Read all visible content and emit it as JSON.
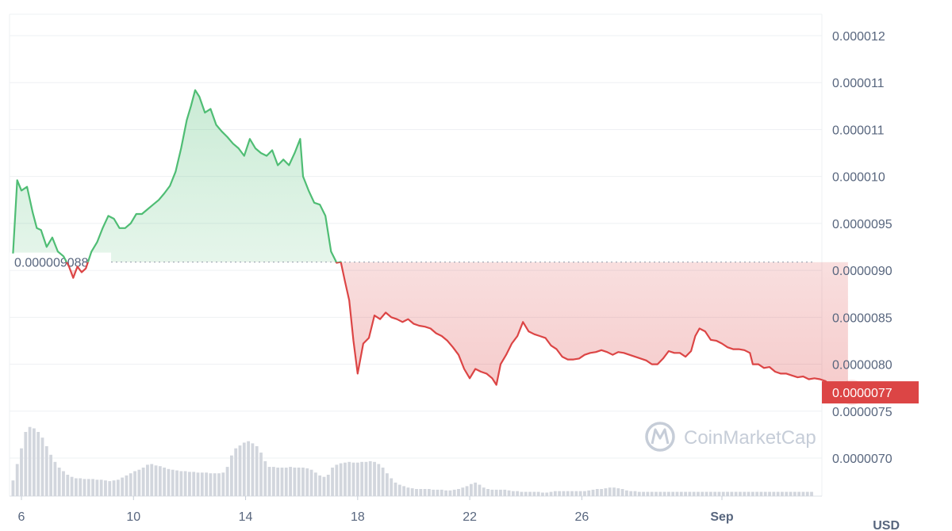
{
  "currency_label": "USD",
  "watermark": "CoinMarketCap",
  "colors": {
    "up": "#4fbd74",
    "down": "#dc4545",
    "grid": "#eef0f3",
    "axis_text": "#58667e",
    "volume": "#d2d6dd",
    "watermark": "#c6cdd8"
  },
  "chart_data": {
    "type": "area",
    "baseline": {
      "value": 9.088e-06,
      "label": "0.000009088",
      "style": "dotted"
    },
    "current_price": {
      "value": 7.7e-06,
      "label": "0.0000077"
    },
    "y_axis": {
      "ticks": [
        7e-06,
        7.5e-06,
        8e-06,
        8.5e-06,
        9e-06,
        9.5e-06,
        1e-05,
        1.05e-05,
        1.1e-05,
        1.15e-05
      ],
      "tick_labels": [
        "0.0000070",
        "0.0000075",
        "0.0000080",
        "0.0000085",
        "0.0000090",
        "0.0000095",
        "0.000010",
        "0.000011",
        "0.000011",
        "0.000012"
      ],
      "position": "right"
    },
    "x_axis": {
      "ticks": [
        6,
        10,
        14,
        18,
        22,
        26,
        31
      ],
      "tick_labels": [
        "6",
        "10",
        "14",
        "18",
        "22",
        "26",
        "Sep"
      ],
      "bold_labels": [
        "Sep"
      ]
    },
    "x_range": [
      5.7,
      35.7
    ],
    "ylim": [
      6.9e-06,
      1.2e-05
    ],
    "series": [
      {
        "points": [
          [
            5.7,
            9.18e-06
          ],
          [
            5.85,
            9.96e-06
          ],
          [
            6.0,
            9.85e-06
          ],
          [
            6.2,
            9.89e-06
          ],
          [
            6.4,
            9.62e-06
          ],
          [
            6.55,
            9.45e-06
          ],
          [
            6.7,
            9.43e-06
          ],
          [
            6.9,
            9.25e-06
          ],
          [
            7.1,
            9.35e-06
          ],
          [
            7.3,
            9.2e-06
          ],
          [
            7.5,
            9.15e-06
          ],
          [
            7.7,
            9.04e-06
          ],
          [
            7.85,
            8.92e-06
          ],
          [
            8.0,
            9.04e-06
          ],
          [
            8.15,
            8.98e-06
          ],
          [
            8.3,
            9.02e-06
          ],
          [
            8.5,
            9.2e-06
          ],
          [
            8.7,
            9.3e-06
          ],
          [
            8.9,
            9.45e-06
          ],
          [
            9.1,
            9.58e-06
          ],
          [
            9.3,
            9.55e-06
          ],
          [
            9.5,
            9.45e-06
          ],
          [
            9.7,
            9.45e-06
          ],
          [
            9.9,
            9.5e-06
          ],
          [
            10.1,
            9.6e-06
          ],
          [
            10.3,
            9.6e-06
          ],
          [
            10.5,
            9.65e-06
          ],
          [
            10.7,
            9.7e-06
          ],
          [
            10.9,
            9.75e-06
          ],
          [
            11.1,
            9.82e-06
          ],
          [
            11.3,
            9.9e-06
          ],
          [
            11.5,
            1.005e-05
          ],
          [
            11.7,
            1.03e-05
          ],
          [
            11.9,
            1.06e-05
          ],
          [
            12.05,
            1.075e-05
          ],
          [
            12.2,
            1.092e-05
          ],
          [
            12.35,
            1.085e-05
          ],
          [
            12.55,
            1.068e-05
          ],
          [
            12.75,
            1.072e-05
          ],
          [
            12.95,
            1.055e-05
          ],
          [
            13.15,
            1.048e-05
          ],
          [
            13.35,
            1.042e-05
          ],
          [
            13.55,
            1.035e-05
          ],
          [
            13.75,
            1.03e-05
          ],
          [
            13.95,
            1.022e-05
          ],
          [
            14.15,
            1.04e-05
          ],
          [
            14.35,
            1.03e-05
          ],
          [
            14.55,
            1.025e-05
          ],
          [
            14.75,
            1.022e-05
          ],
          [
            14.95,
            1.028e-05
          ],
          [
            15.15,
            1.012e-05
          ],
          [
            15.35,
            1.018e-05
          ],
          [
            15.55,
            1.012e-05
          ],
          [
            15.75,
            1.025e-05
          ],
          [
            15.95,
            1.04e-05
          ],
          [
            16.05,
            1e-05
          ],
          [
            16.25,
            9.85e-06
          ],
          [
            16.45,
            9.72e-06
          ],
          [
            16.65,
            9.7e-06
          ],
          [
            16.85,
            9.58e-06
          ],
          [
            17.05,
            9.2e-06
          ],
          [
            17.25,
            9.08e-06
          ],
          [
            17.4,
            9.09e-06
          ],
          [
            17.55,
            8.88e-06
          ],
          [
            17.7,
            8.68e-06
          ],
          [
            17.85,
            8.25e-06
          ],
          [
            18.0,
            7.9e-06
          ],
          [
            18.2,
            8.22e-06
          ],
          [
            18.4,
            8.28e-06
          ],
          [
            18.6,
            8.52e-06
          ],
          [
            18.8,
            8.48e-06
          ],
          [
            19.0,
            8.55e-06
          ],
          [
            19.2,
            8.5e-06
          ],
          [
            19.4,
            8.48e-06
          ],
          [
            19.6,
            8.45e-06
          ],
          [
            19.8,
            8.48e-06
          ],
          [
            20.0,
            8.43e-06
          ],
          [
            20.2,
            8.41e-06
          ],
          [
            20.4,
            8.4e-06
          ],
          [
            20.6,
            8.38e-06
          ],
          [
            20.8,
            8.33e-06
          ],
          [
            21.0,
            8.3e-06
          ],
          [
            21.2,
            8.25e-06
          ],
          [
            21.4,
            8.18e-06
          ],
          [
            21.6,
            8.1e-06
          ],
          [
            21.8,
            7.95e-06
          ],
          [
            22.0,
            7.85e-06
          ],
          [
            22.2,
            7.95e-06
          ],
          [
            22.4,
            7.92e-06
          ],
          [
            22.6,
            7.9e-06
          ],
          [
            22.8,
            7.85e-06
          ],
          [
            22.95,
            7.78e-06
          ],
          [
            23.1,
            8e-06
          ],
          [
            23.3,
            8.1e-06
          ],
          [
            23.5,
            8.22e-06
          ],
          [
            23.7,
            8.3e-06
          ],
          [
            23.9,
            8.45e-06
          ],
          [
            24.1,
            8.35e-06
          ],
          [
            24.3,
            8.32e-06
          ],
          [
            24.5,
            8.3e-06
          ],
          [
            24.7,
            8.28e-06
          ],
          [
            24.9,
            8.2e-06
          ],
          [
            25.1,
            8.16e-06
          ],
          [
            25.3,
            8.08e-06
          ],
          [
            25.5,
            8.05e-06
          ],
          [
            25.7,
            8.05e-06
          ],
          [
            25.9,
            8.06e-06
          ],
          [
            26.1,
            8.1e-06
          ],
          [
            26.3,
            8.12e-06
          ],
          [
            26.5,
            8.13e-06
          ],
          [
            26.7,
            8.15e-06
          ],
          [
            26.9,
            8.13e-06
          ],
          [
            27.1,
            8.1e-06
          ],
          [
            27.3,
            8.13e-06
          ],
          [
            27.5,
            8.12e-06
          ],
          [
            27.7,
            8.1e-06
          ],
          [
            27.9,
            8.08e-06
          ],
          [
            28.1,
            8.06e-06
          ],
          [
            28.3,
            8.04e-06
          ],
          [
            28.5,
            8e-06
          ],
          [
            28.7,
            8e-06
          ],
          [
            28.9,
            8.06e-06
          ],
          [
            29.1,
            8.14e-06
          ],
          [
            29.3,
            8.12e-06
          ],
          [
            29.5,
            8.12e-06
          ],
          [
            29.7,
            8.08e-06
          ],
          [
            29.9,
            8.14e-06
          ],
          [
            30.05,
            8.3e-06
          ],
          [
            30.2,
            8.38e-06
          ],
          [
            30.4,
            8.35e-06
          ],
          [
            30.6,
            8.26e-06
          ],
          [
            30.8,
            8.25e-06
          ],
          [
            31.0,
            8.22e-06
          ],
          [
            31.2,
            8.18e-06
          ],
          [
            31.4,
            8.16e-06
          ],
          [
            31.6,
            8.16e-06
          ],
          [
            31.8,
            8.15e-06
          ],
          [
            32.0,
            8.12e-06
          ],
          [
            32.1,
            8e-06
          ],
          [
            32.3,
            8e-06
          ],
          [
            32.5,
            7.96e-06
          ],
          [
            32.7,
            7.97e-06
          ],
          [
            32.9,
            7.92e-06
          ],
          [
            33.1,
            7.9e-06
          ],
          [
            33.3,
            7.9e-06
          ],
          [
            33.5,
            7.88e-06
          ],
          [
            33.7,
            7.86e-06
          ],
          [
            33.9,
            7.87e-06
          ],
          [
            34.1,
            7.84e-06
          ],
          [
            34.3,
            7.85e-06
          ],
          [
            34.5,
            7.84e-06
          ],
          [
            34.7,
            7.82e-06
          ],
          [
            34.9,
            7.76e-06
          ],
          [
            35.1,
            7.72e-06
          ],
          [
            35.3,
            7.71e-06
          ],
          [
            35.5,
            7.7e-06
          ]
        ]
      }
    ],
    "volume": {
      "x_start": 5.7,
      "x_step": 0.15,
      "scale_max": 100,
      "values": [
        22,
        45,
        67,
        90,
        97,
        95,
        90,
        82,
        70,
        58,
        48,
        40,
        35,
        30,
        27,
        25,
        25,
        24,
        24,
        24,
        23,
        23,
        22,
        21,
        22,
        23,
        26,
        29,
        32,
        35,
        37,
        40,
        44,
        45,
        43,
        42,
        40,
        38,
        37,
        36,
        35,
        35,
        34,
        34,
        33,
        33,
        33,
        32,
        32,
        32,
        33,
        41,
        57,
        67,
        71,
        75,
        77,
        74,
        70,
        61,
        49,
        41,
        41,
        40,
        40,
        40,
        41,
        40,
        40,
        40,
        39,
        37,
        33,
        29,
        27,
        30,
        40,
        44,
        46,
        47,
        48,
        47,
        47,
        48,
        48,
        49,
        48,
        45,
        40,
        32,
        25,
        19,
        16,
        14,
        12,
        11,
        10,
        10,
        10,
        10,
        9,
        9,
        9,
        8,
        8,
        9,
        10,
        12,
        14,
        17,
        19,
        16,
        12,
        10,
        9,
        9,
        9,
        9,
        8,
        7,
        7,
        6,
        6,
        6,
        6,
        6,
        5,
        5,
        6,
        7,
        7,
        7,
        7,
        7,
        7,
        7,
        7,
        8,
        9,
        10,
        10,
        11,
        12,
        12,
        11,
        10,
        8,
        7,
        7,
        6,
        6,
        6,
        6,
        6,
        6,
        6,
        6,
        6,
        6,
        6,
        6,
        6,
        6,
        6,
        6,
        6,
        6,
        6,
        6,
        6,
        6,
        6,
        6,
        6,
        6,
        6,
        6,
        6,
        6,
        6,
        6,
        6,
        6,
        6,
        6,
        6,
        6,
        6,
        6,
        6,
        6,
        6,
        6,
        6,
        6,
        6
      ]
    },
    "grid": true
  }
}
